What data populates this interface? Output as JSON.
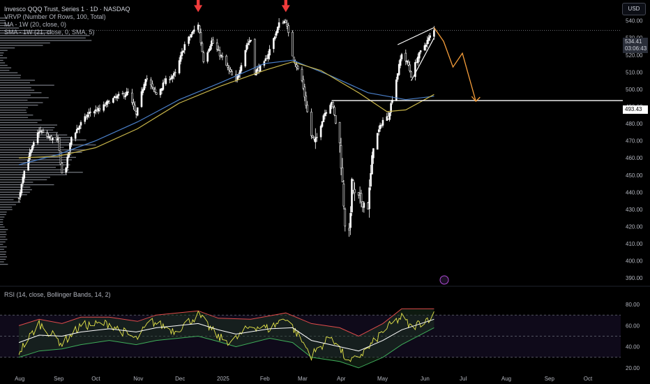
{
  "header": {
    "title": "Invesco QQQ Trust, Series 1 · 1D · NASDAQ",
    "vrvp": "VRVP (Number Of Rows, 100, Total)",
    "ma": "MA - 1W (20, close, 0)",
    "sma": "SMA - 1W (21, close, 0, SMA, 5)",
    "rsi": "RSI (14, close, Bollinger Bands, 14, 2)"
  },
  "currency_button": "USD",
  "price_tags": {
    "last_price": "534.41",
    "countdown": "03:06:43",
    "level": "493.43"
  },
  "colors": {
    "background": "#000000",
    "candle": "#ffffff",
    "ma20": "#4a7fc9",
    "sma21": "#c9b64a",
    "arrow": "#ef3b3b",
    "projection": "#f59d3a",
    "rsi_line": "#e6e64a",
    "rsi_ma": "#ffffff",
    "bb_upper": "#e04b4b",
    "bb_lower": "#3fae5a"
  },
  "chart_data": [
    {
      "type": "candlestick",
      "title": "Invesco QQQ Trust, Series 1 · 1D · NASDAQ",
      "x_ticks": [
        "Aug",
        "Sep",
        "Oct",
        "Nov",
        "Dec",
        "2025",
        "Feb",
        "Mar",
        "Apr",
        "May",
        "Jun",
        "Jul",
        "Aug",
        "Sep",
        "Oct"
      ],
      "y_ticks": [
        390,
        400,
        410,
        420,
        430,
        440,
        450,
        460,
        470,
        480,
        490,
        500,
        510,
        520,
        530,
        540
      ],
      "ylim": [
        386,
        548
      ],
      "close_path": [
        [
          "2024-08-05",
          436
        ],
        [
          "2024-08-08",
          450
        ],
        [
          "2024-08-13",
          462
        ],
        [
          "2024-08-20",
          476
        ],
        [
          "2024-08-27",
          472
        ],
        [
          "2024-09-03",
          470
        ],
        [
          "2024-09-06",
          451
        ],
        [
          "2024-09-09",
          455
        ],
        [
          "2024-09-13",
          472
        ],
        [
          "2024-09-20",
          480
        ],
        [
          "2024-09-27",
          487
        ],
        [
          "2024-10-04",
          488
        ],
        [
          "2024-10-11",
          493
        ],
        [
          "2024-10-18",
          496
        ],
        [
          "2024-10-25",
          498
        ],
        [
          "2024-10-31",
          485
        ],
        [
          "2024-11-07",
          507
        ],
        [
          "2024-11-15",
          497
        ],
        [
          "2024-11-22",
          505
        ],
        [
          "2024-11-29",
          509
        ],
        [
          "2024-12-06",
          526
        ],
        [
          "2024-12-16",
          538
        ],
        [
          "2024-12-20",
          517
        ],
        [
          "2024-12-26",
          528
        ],
        [
          "2025-01-03",
          518
        ],
        [
          "2025-01-10",
          508
        ],
        [
          "2025-01-13",
          504
        ],
        [
          "2025-01-21",
          526
        ],
        [
          "2025-01-24",
          529
        ],
        [
          "2025-01-27",
          510
        ],
        [
          "2025-02-03",
          515
        ],
        [
          "2025-02-07",
          523
        ],
        [
          "2025-02-14",
          538
        ],
        [
          "2025-02-19",
          540
        ],
        [
          "2025-02-24",
          520
        ],
        [
          "2025-03-03",
          505
        ],
        [
          "2025-03-10",
          473
        ],
        [
          "2025-03-13",
          469
        ],
        [
          "2025-03-19",
          485
        ],
        [
          "2025-03-25",
          493
        ],
        [
          "2025-03-31",
          468
        ],
        [
          "2025-04-04",
          422
        ],
        [
          "2025-04-07",
          415
        ],
        [
          "2025-04-09",
          445
        ],
        [
          "2025-04-11",
          438
        ],
        [
          "2025-04-21",
          432
        ],
        [
          "2025-04-25",
          468
        ],
        [
          "2025-05-02",
          482
        ],
        [
          "2025-05-06",
          484
        ],
        [
          "2025-05-12",
          506
        ],
        [
          "2025-05-16",
          521
        ],
        [
          "2025-05-21",
          514
        ],
        [
          "2025-05-23",
          508
        ],
        [
          "2025-05-28",
          519
        ],
        [
          "2025-06-03",
          527
        ],
        [
          "2025-06-09",
          534.41
        ]
      ],
      "ma20_weekly": [
        [
          "2024-08-05",
          456
        ],
        [
          "2024-09-03",
          462
        ],
        [
          "2024-10-01",
          470
        ],
        [
          "2024-11-01",
          481
        ],
        [
          "2024-12-02",
          494
        ],
        [
          "2025-01-02",
          504
        ],
        [
          "2025-02-03",
          515
        ],
        [
          "2025-02-24",
          517
        ],
        [
          "2025-03-24",
          508
        ],
        [
          "2025-04-21",
          498
        ],
        [
          "2025-05-19",
          494
        ],
        [
          "2025-06-09",
          496
        ]
      ],
      "sma21_weekly": [
        [
          "2024-08-05",
          460
        ],
        [
          "2024-09-03",
          461
        ],
        [
          "2024-10-01",
          466
        ],
        [
          "2024-11-01",
          477
        ],
        [
          "2024-12-02",
          492
        ],
        [
          "2025-01-02",
          502
        ],
        [
          "2025-02-03",
          511
        ],
        [
          "2025-02-24",
          516
        ],
        [
          "2025-03-17",
          511
        ],
        [
          "2025-04-14",
          498
        ],
        [
          "2025-05-05",
          487
        ],
        [
          "2025-05-19",
          488
        ],
        [
          "2025-06-09",
          497
        ]
      ],
      "last_price": 534.41,
      "horizontal_level": 493.43,
      "top_markers": [
        [
          "2024-12-16",
          545
        ],
        [
          "2025-02-19",
          545
        ]
      ],
      "wedge": {
        "upper": [
          [
            "2025-05-13",
            526
          ],
          [
            "2025-06-09",
            536
          ]
        ],
        "lower": [
          [
            "2025-05-23",
            505
          ],
          [
            "2025-06-09",
            530
          ]
        ]
      },
      "projection": [
        [
          "2025-06-09",
          536
        ],
        [
          "2025-06-16",
          528
        ],
        [
          "2025-06-23",
          513
        ],
        [
          "2025-06-30",
          521
        ],
        [
          "2025-07-10",
          493
        ]
      ],
      "volume_profile": "visible-left",
      "grid": false
    },
    {
      "type": "line",
      "title": "RSI (14, close, Bollinger Bands, 14, 2)",
      "y_ticks": [
        20,
        40,
        60,
        80
      ],
      "ylim": [
        14,
        88
      ],
      "reference_lines": [
        30,
        50,
        70
      ],
      "rsi": [
        [
          "2024-08-05",
          35
        ],
        [
          "2024-08-20",
          62
        ],
        [
          "2024-09-06",
          43
        ],
        [
          "2024-09-20",
          60
        ],
        [
          "2024-10-11",
          62
        ],
        [
          "2024-10-31",
          47
        ],
        [
          "2024-11-11",
          64
        ],
        [
          "2024-11-29",
          55
        ],
        [
          "2024-12-16",
          70
        ],
        [
          "2024-12-31",
          49
        ],
        [
          "2025-01-10",
          44
        ],
        [
          "2025-01-24",
          60
        ],
        [
          "2025-02-07",
          57
        ],
        [
          "2025-02-19",
          68
        ],
        [
          "2025-03-10",
          32
        ],
        [
          "2025-03-25",
          50
        ],
        [
          "2025-04-07",
          24
        ],
        [
          "2025-04-21",
          38
        ],
        [
          "2025-05-02",
          55
        ],
        [
          "2025-05-16",
          68
        ],
        [
          "2025-05-23",
          58
        ],
        [
          "2025-06-09",
          70
        ]
      ],
      "rsi_ma": [
        [
          "2024-08-05",
          44
        ],
        [
          "2024-08-20",
          51
        ],
        [
          "2024-09-06",
          50
        ],
        [
          "2024-09-20",
          54
        ],
        [
          "2024-10-11",
          57
        ],
        [
          "2024-10-31",
          54
        ],
        [
          "2024-11-15",
          58
        ],
        [
          "2024-12-16",
          62
        ],
        [
          "2024-12-31",
          56
        ],
        [
          "2025-01-13",
          52
        ],
        [
          "2025-02-07",
          57
        ],
        [
          "2025-02-24",
          58
        ],
        [
          "2025-03-10",
          46
        ],
        [
          "2025-03-31",
          40
        ],
        [
          "2025-04-14",
          36
        ],
        [
          "2025-05-02",
          46
        ],
        [
          "2025-05-16",
          56
        ],
        [
          "2025-06-09",
          66
        ]
      ],
      "bb_upper": [
        [
          "2024-08-05",
          60
        ],
        [
          "2024-08-20",
          66
        ],
        [
          "2024-09-06",
          62
        ],
        [
          "2024-09-20",
          68
        ],
        [
          "2024-10-11",
          68
        ],
        [
          "2024-11-01",
          64
        ],
        [
          "2024-11-15",
          70
        ],
        [
          "2024-12-16",
          74
        ],
        [
          "2024-12-31",
          67
        ],
        [
          "2025-01-24",
          66
        ],
        [
          "2025-02-19",
          72
        ],
        [
          "2025-03-10",
          62
        ],
        [
          "2025-03-31",
          58
        ],
        [
          "2025-04-14",
          50
        ],
        [
          "2025-05-02",
          62
        ],
        [
          "2025-05-16",
          76
        ],
        [
          "2025-06-09",
          76
        ]
      ],
      "bb_lower": [
        [
          "2024-08-05",
          30
        ],
        [
          "2024-08-20",
          36
        ],
        [
          "2024-09-06",
          38
        ],
        [
          "2024-09-20",
          42
        ],
        [
          "2024-10-11",
          46
        ],
        [
          "2024-10-31",
          42
        ],
        [
          "2024-11-15",
          46
        ],
        [
          "2024-12-16",
          50
        ],
        [
          "2024-12-31",
          45
        ],
        [
          "2025-01-13",
          40
        ],
        [
          "2025-02-07",
          48
        ],
        [
          "2025-02-24",
          44
        ],
        [
          "2025-03-10",
          30
        ],
        [
          "2025-03-31",
          26
        ],
        [
          "2025-04-14",
          20
        ],
        [
          "2025-05-02",
          30
        ],
        [
          "2025-05-16",
          42
        ],
        [
          "2025-06-09",
          58
        ]
      ],
      "grid": false
    }
  ]
}
